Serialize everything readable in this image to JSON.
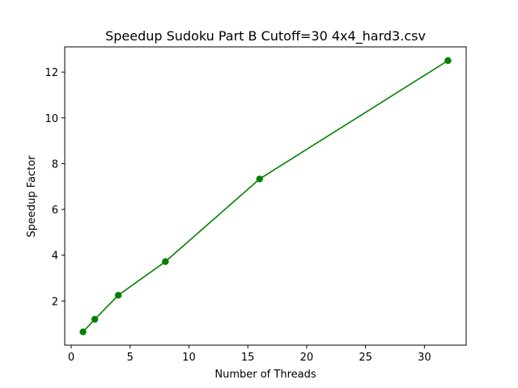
{
  "chart_data": {
    "type": "line",
    "title": "Speedup Sudoku Part B Cutoff=30 4x4_hard3.csv",
    "xlabel": "Number of Threads",
    "ylabel": "Speedup Factor",
    "xlim": [
      -0.55,
      33.55
    ],
    "ylim": [
      0.07,
      13.1
    ],
    "xticks": [
      0,
      5,
      10,
      15,
      20,
      25,
      30
    ],
    "yticks": [
      2,
      4,
      6,
      8,
      10,
      12
    ],
    "grid": false,
    "series": [
      {
        "color": "#008000",
        "marker": "circle",
        "x": [
          1,
          2,
          4,
          8,
          16,
          32
        ],
        "y": [
          0.65,
          1.2,
          2.25,
          3.72,
          7.33,
          12.5
        ]
      }
    ]
  }
}
